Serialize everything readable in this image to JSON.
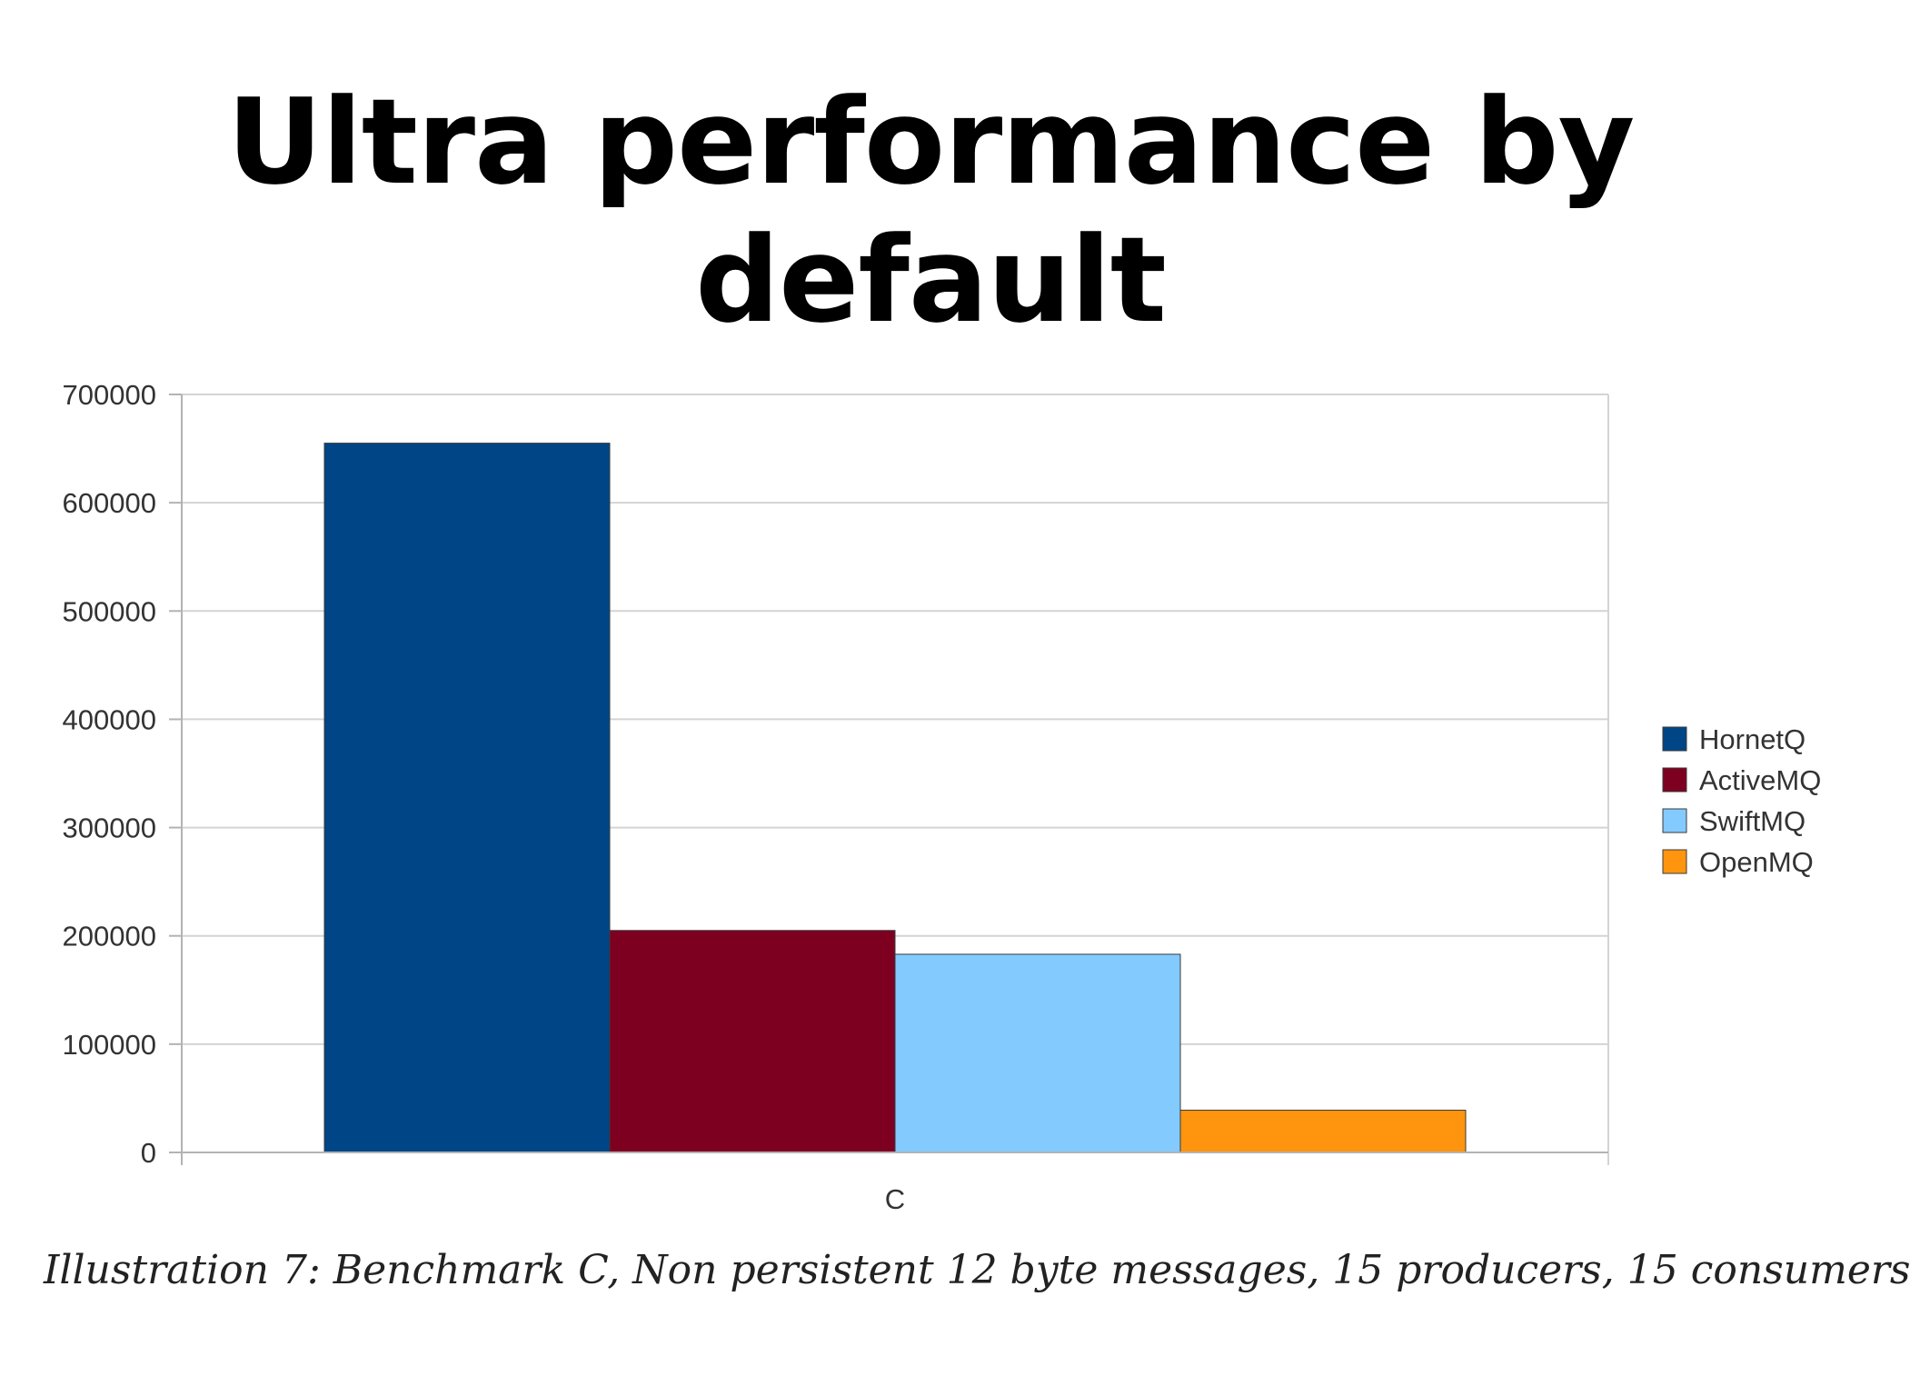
{
  "slide": {
    "title": "Ultra performance by default",
    "caption": "Illustration 7: Benchmark C, Non persistent 12 byte messages, 15 producers, 15 consumers"
  },
  "chart_data": {
    "type": "bar",
    "categories": [
      "C"
    ],
    "series": [
      {
        "name": "HornetQ",
        "values": [
          655000
        ],
        "color": "#004586"
      },
      {
        "name": "ActiveMQ",
        "values": [
          205000
        ],
        "color": "#7e0021"
      },
      {
        "name": "SwiftMQ",
        "values": [
          183000
        ],
        "color": "#83caff"
      },
      {
        "name": "OpenMQ",
        "values": [
          39000
        ],
        "color": "#ff950e"
      }
    ],
    "ylim": [
      0,
      700000
    ],
    "yticks": [
      "0",
      "100000",
      "200000",
      "300000",
      "400000",
      "500000",
      "600000",
      "700000"
    ],
    "grid": true,
    "legend": "right"
  }
}
